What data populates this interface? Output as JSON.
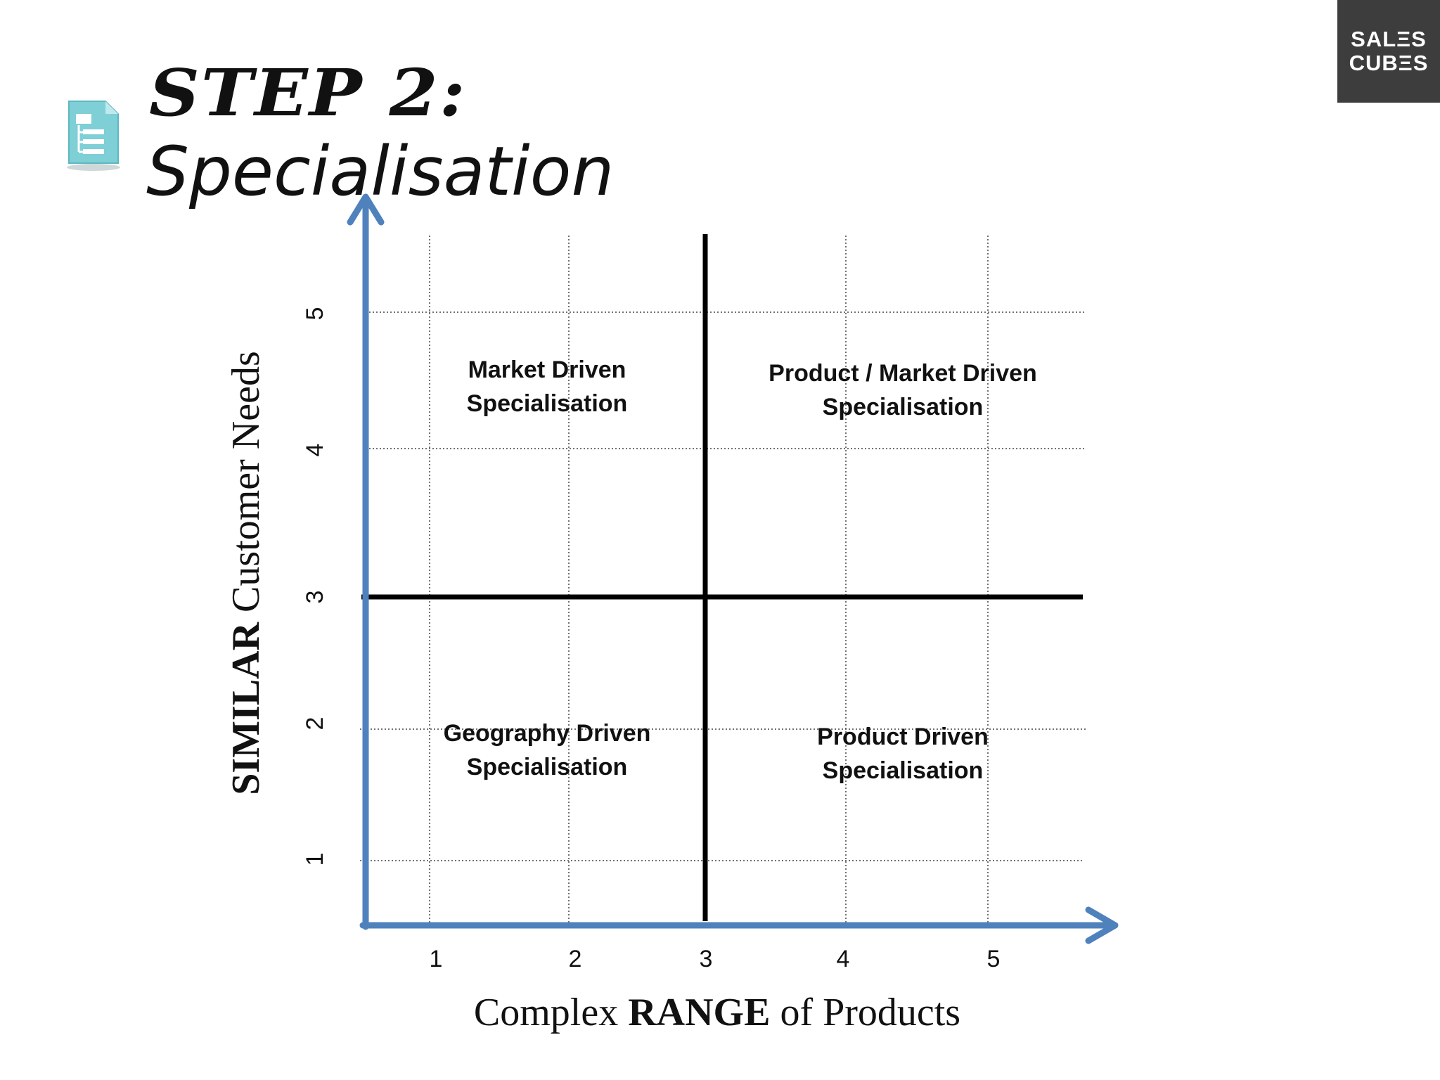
{
  "header": {
    "step_label": "STEP 2:",
    "subtitle": "Specialisation",
    "icon": "document-list-icon"
  },
  "brand": {
    "line1": "SALΞS",
    "line2": "CUBΞS",
    "background": "#3d3d3d"
  },
  "diagram": {
    "axis_color": "#4f81bd",
    "divider_color": "#000000",
    "x_axis": {
      "ticks": [
        "1",
        "2",
        "3",
        "4",
        "5"
      ],
      "label_pre": "Complex",
      "label_bold": "RANGE",
      "label_post": "of Products"
    },
    "y_axis": {
      "ticks": [
        "1",
        "2",
        "3",
        "4",
        "5"
      ],
      "label_bold": "SIMILAR",
      "label_post": "Customer Needs"
    },
    "quadrants": [
      {
        "id": "top-left",
        "line1": "Market Driven",
        "line2": "Specialisation"
      },
      {
        "id": "top-right",
        "line1": "Product / Market Driven",
        "line2": "Specialisation"
      },
      {
        "id": "bottom-left",
        "line1": "Geography Driven",
        "line2": "Specialisation"
      },
      {
        "id": "bottom-right",
        "line1": "Product Driven",
        "line2": "Specialisation"
      }
    ]
  }
}
